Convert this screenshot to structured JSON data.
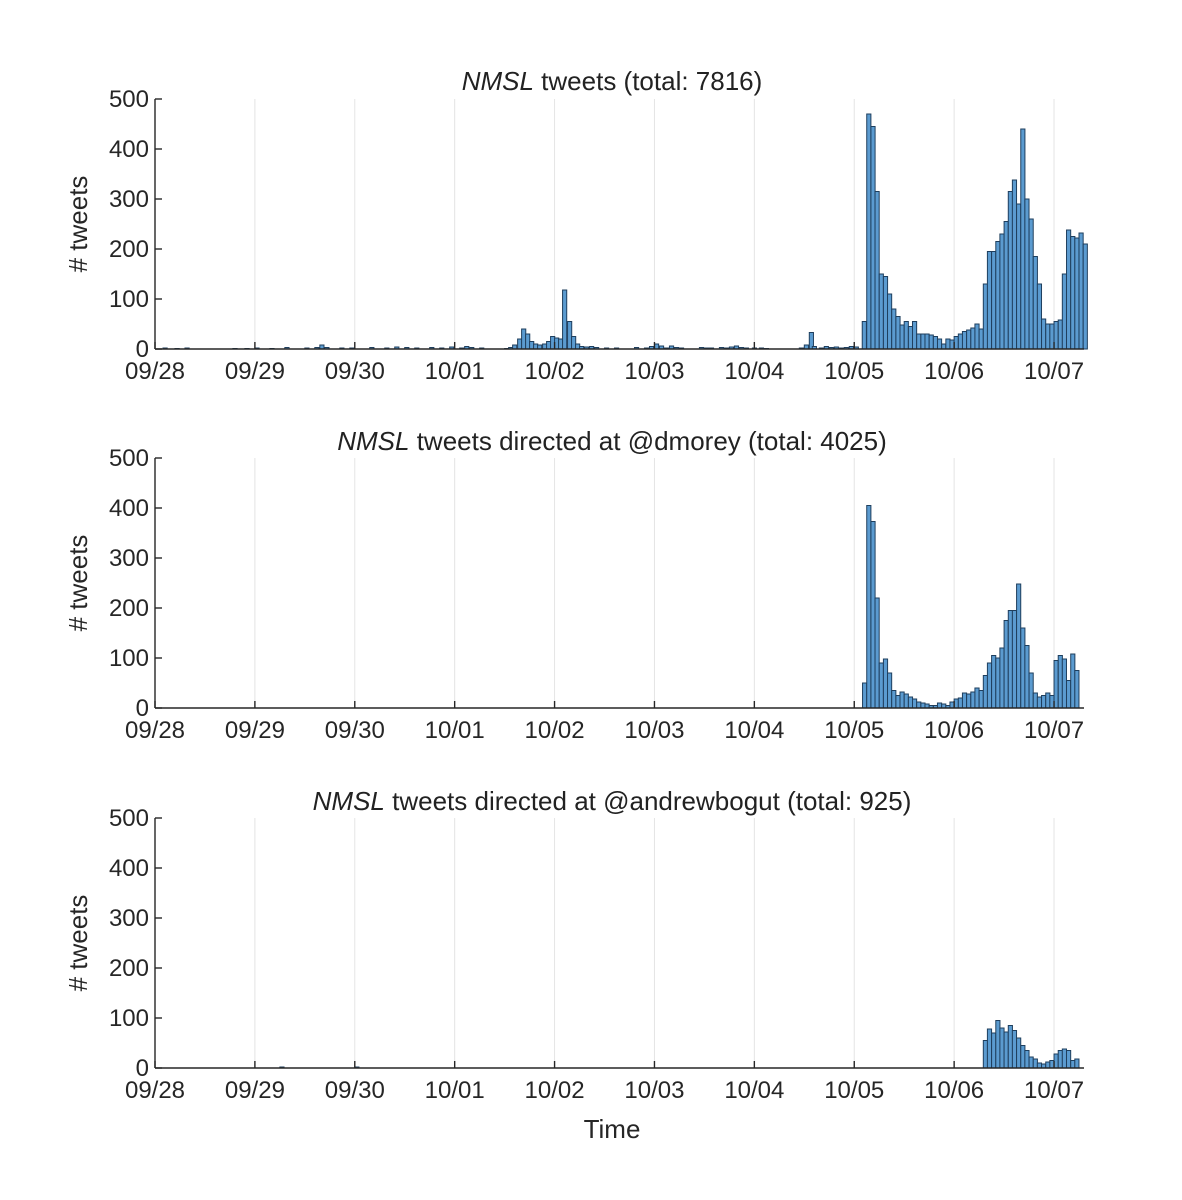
{
  "figure": {
    "xlabel": "Time"
  },
  "chart_data": [
    {
      "type": "bar",
      "title_italic": "NMSL",
      "title_rest": " tweets (total: 7816)",
      "xlabel": "",
      "ylabel": "# tweets",
      "ylim": [
        0,
        500
      ],
      "yticks": [
        0,
        100,
        200,
        300,
        400,
        500
      ],
      "xlim": [
        0,
        9.3
      ],
      "xticks": [
        "09/28",
        "09/29",
        "09/30",
        "10/01",
        "10/02",
        "10/03",
        "10/04",
        "10/05",
        "10/06",
        "10/07"
      ],
      "grid": "vertical",
      "bin_width_days": 0.04167,
      "bins": [
        [
          0.08,
          2
        ],
        [
          0.2,
          1
        ],
        [
          0.3,
          2
        ],
        [
          0.78,
          1
        ],
        [
          0.9,
          1
        ],
        [
          1.0,
          2
        ],
        [
          1.15,
          1
        ],
        [
          1.3,
          3
        ],
        [
          1.5,
          2
        ],
        [
          1.6,
          3
        ],
        [
          1.65,
          8
        ],
        [
          1.7,
          3
        ],
        [
          1.85,
          2
        ],
        [
          1.95,
          2
        ],
        [
          2.15,
          3
        ],
        [
          2.3,
          2
        ],
        [
          2.4,
          4
        ],
        [
          2.5,
          3
        ],
        [
          2.6,
          2
        ],
        [
          2.75,
          3
        ],
        [
          2.85,
          2
        ],
        [
          2.95,
          4
        ],
        [
          3.05,
          2
        ],
        [
          3.1,
          5
        ],
        [
          3.15,
          3
        ],
        [
          3.25,
          2
        ],
        [
          3.5,
          1
        ],
        [
          3.54,
          3
        ],
        [
          3.58,
          8
        ],
        [
          3.63,
          20
        ],
        [
          3.67,
          40
        ],
        [
          3.71,
          30
        ],
        [
          3.75,
          15
        ],
        [
          3.79,
          10
        ],
        [
          3.83,
          8
        ],
        [
          3.88,
          10
        ],
        [
          3.92,
          15
        ],
        [
          3.96,
          25
        ],
        [
          4.0,
          22
        ],
        [
          4.04,
          20
        ],
        [
          4.08,
          118
        ],
        [
          4.13,
          55
        ],
        [
          4.17,
          25
        ],
        [
          4.21,
          10
        ],
        [
          4.25,
          5
        ],
        [
          4.3,
          4
        ],
        [
          4.35,
          5
        ],
        [
          4.4,
          3
        ],
        [
          4.5,
          2
        ],
        [
          4.6,
          2
        ],
        [
          4.8,
          3
        ],
        [
          4.9,
          2
        ],
        [
          4.95,
          5
        ],
        [
          5.0,
          10
        ],
        [
          5.05,
          6
        ],
        [
          5.1,
          2
        ],
        [
          5.15,
          6
        ],
        [
          5.2,
          3
        ],
        [
          5.25,
          2
        ],
        [
          5.45,
          3
        ],
        [
          5.5,
          2
        ],
        [
          5.55,
          2
        ],
        [
          5.65,
          3
        ],
        [
          5.7,
          2
        ],
        [
          5.75,
          4
        ],
        [
          5.8,
          6
        ],
        [
          5.85,
          3
        ],
        [
          5.9,
          2
        ],
        [
          5.98,
          2
        ],
        [
          6.05,
          2
        ],
        [
          6.1,
          1
        ],
        [
          6.45,
          2
        ],
        [
          6.5,
          8
        ],
        [
          6.55,
          33
        ],
        [
          6.58,
          5
        ],
        [
          6.65,
          2
        ],
        [
          6.7,
          5
        ],
        [
          6.75,
          3
        ],
        [
          6.8,
          4
        ],
        [
          6.85,
          2
        ],
        [
          6.9,
          3
        ],
        [
          6.95,
          5
        ],
        [
          7.0,
          4
        ],
        [
          7.1,
          5
        ],
        [
          7.15,
          2
        ],
        [
          7.08,
          55
        ],
        [
          7.125,
          470
        ],
        [
          7.167,
          445
        ],
        [
          7.208,
          315
        ],
        [
          7.25,
          150
        ],
        [
          7.292,
          145
        ],
        [
          7.333,
          110
        ],
        [
          7.375,
          80
        ],
        [
          7.417,
          65
        ],
        [
          7.458,
          48
        ],
        [
          7.5,
          55
        ],
        [
          7.542,
          45
        ],
        [
          7.583,
          55
        ],
        [
          7.625,
          30
        ],
        [
          7.667,
          30
        ],
        [
          7.708,
          30
        ],
        [
          7.75,
          28
        ],
        [
          7.792,
          25
        ],
        [
          7.833,
          20
        ],
        [
          7.875,
          10
        ],
        [
          7.917,
          20
        ],
        [
          7.958,
          18
        ],
        [
          8.0,
          25
        ],
        [
          8.042,
          30
        ],
        [
          8.083,
          35
        ],
        [
          8.125,
          38
        ],
        [
          8.167,
          42
        ],
        [
          8.208,
          50
        ],
        [
          8.25,
          40
        ],
        [
          8.292,
          130
        ],
        [
          8.333,
          195
        ],
        [
          8.375,
          195
        ],
        [
          8.417,
          215
        ],
        [
          8.458,
          230
        ],
        [
          8.5,
          255
        ],
        [
          8.542,
          315
        ],
        [
          8.583,
          338
        ],
        [
          8.625,
          290
        ],
        [
          8.667,
          440
        ],
        [
          8.708,
          300
        ],
        [
          8.75,
          260
        ],
        [
          8.792,
          185
        ],
        [
          8.833,
          130
        ],
        [
          8.875,
          60
        ],
        [
          8.917,
          50
        ],
        [
          8.958,
          50
        ],
        [
          9.0,
          55
        ],
        [
          9.042,
          58
        ],
        [
          9.083,
          150
        ],
        [
          9.125,
          238
        ],
        [
          9.167,
          225
        ],
        [
          9.208,
          222
        ],
        [
          9.25,
          232
        ],
        [
          9.292,
          210
        ]
      ]
    },
    {
      "type": "bar",
      "title_italic": "NMSL",
      "title_rest": " tweets directed at @dmorey (total: 4025)",
      "xlabel": "",
      "ylabel": "# tweets",
      "ylim": [
        0,
        500
      ],
      "yticks": [
        0,
        100,
        200,
        300,
        400,
        500
      ],
      "xlim": [
        0,
        9.3
      ],
      "xticks": [
        "09/28",
        "09/29",
        "09/30",
        "10/01",
        "10/02",
        "10/03",
        "10/04",
        "10/05",
        "10/06",
        "10/07"
      ],
      "grid": "vertical",
      "bin_width_days": 0.04167,
      "bins": [
        [
          7.083,
          50
        ],
        [
          7.125,
          405
        ],
        [
          7.167,
          373
        ],
        [
          7.208,
          220
        ],
        [
          7.25,
          90
        ],
        [
          7.292,
          98
        ],
        [
          7.333,
          70
        ],
        [
          7.375,
          35
        ],
        [
          7.417,
          25
        ],
        [
          7.458,
          32
        ],
        [
          7.5,
          28
        ],
        [
          7.542,
          22
        ],
        [
          7.583,
          18
        ],
        [
          7.625,
          12
        ],
        [
          7.667,
          10
        ],
        [
          7.708,
          8
        ],
        [
          7.75,
          5
        ],
        [
          7.792,
          5
        ],
        [
          7.833,
          10
        ],
        [
          7.875,
          8
        ],
        [
          7.917,
          5
        ],
        [
          7.958,
          12
        ],
        [
          8.0,
          18
        ],
        [
          8.042,
          20
        ],
        [
          8.083,
          30
        ],
        [
          8.125,
          28
        ],
        [
          8.167,
          32
        ],
        [
          8.208,
          40
        ],
        [
          8.25,
          35
        ],
        [
          8.292,
          65
        ],
        [
          8.333,
          90
        ],
        [
          8.375,
          105
        ],
        [
          8.417,
          100
        ],
        [
          8.458,
          120
        ],
        [
          8.5,
          175
        ],
        [
          8.542,
          195
        ],
        [
          8.583,
          195
        ],
        [
          8.625,
          248
        ],
        [
          8.667,
          160
        ],
        [
          8.708,
          125
        ],
        [
          8.75,
          70
        ],
        [
          8.792,
          30
        ],
        [
          8.833,
          22
        ],
        [
          8.875,
          25
        ],
        [
          8.917,
          30
        ],
        [
          8.958,
          25
        ],
        [
          9.0,
          95
        ],
        [
          9.042,
          105
        ],
        [
          9.083,
          98
        ],
        [
          9.125,
          55
        ],
        [
          9.167,
          108
        ],
        [
          9.208,
          75
        ]
      ]
    },
    {
      "type": "bar",
      "title_italic": "NMSL",
      "title_rest": " tweets directed at @andrewbogut (total: 925)",
      "xlabel": "Time",
      "ylabel": "# tweets",
      "ylim": [
        0,
        500
      ],
      "yticks": [
        0,
        100,
        200,
        300,
        400,
        500
      ],
      "xlim": [
        0,
        9.3
      ],
      "xticks": [
        "09/28",
        "09/29",
        "09/30",
        "10/01",
        "10/02",
        "10/03",
        "10/04",
        "10/05",
        "10/06",
        "10/07"
      ],
      "grid": "vertical",
      "bin_width_days": 0.04167,
      "bins": [
        [
          1.25,
          2
        ],
        [
          2.0,
          2
        ],
        [
          8.292,
          55
        ],
        [
          8.333,
          78
        ],
        [
          8.375,
          70
        ],
        [
          8.417,
          95
        ],
        [
          8.458,
          80
        ],
        [
          8.5,
          72
        ],
        [
          8.542,
          85
        ],
        [
          8.583,
          75
        ],
        [
          8.625,
          60
        ],
        [
          8.667,
          45
        ],
        [
          8.708,
          35
        ],
        [
          8.75,
          22
        ],
        [
          8.792,
          18
        ],
        [
          8.833,
          10
        ],
        [
          8.875,
          8
        ],
        [
          8.917,
          12
        ],
        [
          8.958,
          15
        ],
        [
          9.0,
          28
        ],
        [
          9.042,
          35
        ],
        [
          9.083,
          38
        ],
        [
          9.125,
          35
        ],
        [
          9.167,
          15
        ],
        [
          9.208,
          18
        ]
      ]
    }
  ]
}
